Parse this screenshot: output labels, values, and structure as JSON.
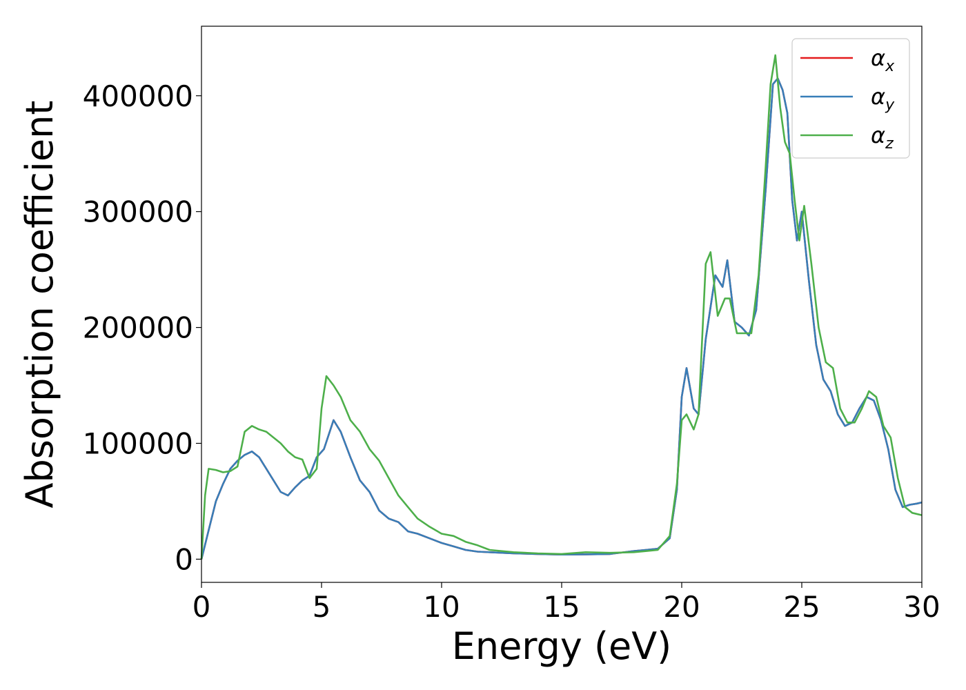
{
  "chart_data": {
    "type": "line",
    "xlabel": "Energy (eV)",
    "ylabel": "Absorption coefficient",
    "xlim": [
      0,
      30
    ],
    "ylim": [
      -20000,
      460000
    ],
    "xticks": [
      "0",
      "5",
      "10",
      "15",
      "20",
      "25",
      "30"
    ],
    "yticks": [
      "0",
      "100000",
      "200000",
      "300000",
      "400000"
    ],
    "grid": false,
    "legend_position": "top-right",
    "series": [
      {
        "name": "α",
        "subscript": "x",
        "color": "#e41a1c",
        "x": [
          0,
          0.3,
          0.6,
          0.9,
          1.2,
          1.5,
          1.8,
          2.1,
          2.4,
          2.7,
          3.0,
          3.3,
          3.6,
          3.9,
          4.2,
          4.5,
          4.8,
          5.1,
          5.5,
          5.8,
          6.2,
          6.6,
          7.0,
          7.4,
          7.8,
          8.2,
          8.6,
          9.0,
          9.5,
          10.0,
          10.5,
          11.0,
          11.5,
          12.0,
          13.0,
          14.0,
          15.0,
          16.0,
          17.0,
          18.0,
          18.5,
          19.0,
          19.5,
          19.8,
          20.0,
          20.2,
          20.5,
          20.7,
          21.0,
          21.4,
          21.7,
          21.9,
          22.2,
          22.5,
          22.8,
          23.1,
          23.5,
          23.8,
          24.0,
          24.2,
          24.4,
          24.6,
          24.8,
          25.0,
          25.3,
          25.6,
          25.9,
          26.2,
          26.5,
          26.8,
          27.1,
          27.4,
          27.7,
          28.0,
          28.3,
          28.6,
          28.9,
          29.2,
          29.5,
          29.8,
          30.0
        ],
        "y": [
          0,
          25000,
          50000,
          65000,
          78000,
          85000,
          90000,
          93000,
          88000,
          78000,
          68000,
          58000,
          55000,
          62000,
          68000,
          72000,
          88000,
          95000,
          120000,
          110000,
          88000,
          68000,
          58000,
          42000,
          35000,
          32000,
          24000,
          22000,
          18000,
          14000,
          11000,
          8000,
          6500,
          6000,
          5000,
          4500,
          4000,
          4200,
          4500,
          7000,
          8000,
          9000,
          18000,
          60000,
          140000,
          165000,
          130000,
          125000,
          190000,
          245000,
          235000,
          258000,
          205000,
          200000,
          193000,
          215000,
          320000,
          410000,
          415000,
          405000,
          385000,
          310000,
          275000,
          300000,
          240000,
          185000,
          155000,
          145000,
          125000,
          115000,
          118000,
          130000,
          140000,
          137000,
          120000,
          95000,
          60000,
          45000,
          47000,
          48000,
          49000
        ]
      },
      {
        "name": "α",
        "subscript": "y",
        "color": "#377eb8",
        "x": [
          0,
          0.3,
          0.6,
          0.9,
          1.2,
          1.5,
          1.8,
          2.1,
          2.4,
          2.7,
          3.0,
          3.3,
          3.6,
          3.9,
          4.2,
          4.5,
          4.8,
          5.1,
          5.5,
          5.8,
          6.2,
          6.6,
          7.0,
          7.4,
          7.8,
          8.2,
          8.6,
          9.0,
          9.5,
          10.0,
          10.5,
          11.0,
          11.5,
          12.0,
          13.0,
          14.0,
          15.0,
          16.0,
          17.0,
          18.0,
          18.5,
          19.0,
          19.5,
          19.8,
          20.0,
          20.2,
          20.5,
          20.7,
          21.0,
          21.4,
          21.7,
          21.9,
          22.2,
          22.5,
          22.8,
          23.1,
          23.5,
          23.8,
          24.0,
          24.2,
          24.4,
          24.6,
          24.8,
          25.0,
          25.3,
          25.6,
          25.9,
          26.2,
          26.5,
          26.8,
          27.1,
          27.4,
          27.7,
          28.0,
          28.3,
          28.6,
          28.9,
          29.2,
          29.5,
          29.8,
          30.0
        ],
        "y": [
          0,
          25000,
          50000,
          65000,
          78000,
          85000,
          90000,
          93000,
          88000,
          78000,
          68000,
          58000,
          55000,
          62000,
          68000,
          72000,
          88000,
          95000,
          120000,
          110000,
          88000,
          68000,
          58000,
          42000,
          35000,
          32000,
          24000,
          22000,
          18000,
          14000,
          11000,
          8000,
          6500,
          6000,
          5000,
          4500,
          4000,
          4200,
          4500,
          7000,
          8000,
          9000,
          18000,
          60000,
          140000,
          165000,
          130000,
          125000,
          190000,
          245000,
          235000,
          258000,
          205000,
          200000,
          193000,
          215000,
          320000,
          410000,
          415000,
          405000,
          385000,
          310000,
          275000,
          300000,
          240000,
          185000,
          155000,
          145000,
          125000,
          115000,
          118000,
          130000,
          140000,
          137000,
          120000,
          95000,
          60000,
          45000,
          47000,
          48000,
          49000
        ]
      },
      {
        "name": "α",
        "subscript": "z",
        "color": "#4daf4a",
        "x": [
          0,
          0.15,
          0.3,
          0.6,
          0.9,
          1.2,
          1.5,
          1.8,
          2.1,
          2.4,
          2.7,
          3.0,
          3.3,
          3.6,
          3.9,
          4.2,
          4.5,
          4.8,
          5.0,
          5.2,
          5.5,
          5.8,
          6.2,
          6.6,
          7.0,
          7.4,
          7.8,
          8.2,
          8.6,
          9.0,
          9.5,
          10.0,
          10.5,
          11.0,
          11.5,
          12.0,
          13.0,
          14.0,
          15.0,
          16.0,
          17.0,
          18.0,
          18.5,
          19.0,
          19.5,
          19.8,
          20.0,
          20.2,
          20.5,
          20.7,
          21.0,
          21.2,
          21.5,
          21.8,
          22.0,
          22.3,
          22.6,
          22.9,
          23.2,
          23.5,
          23.7,
          23.9,
          24.1,
          24.3,
          24.5,
          24.7,
          24.9,
          25.1,
          25.4,
          25.7,
          26.0,
          26.3,
          26.6,
          26.9,
          27.2,
          27.5,
          27.8,
          28.1,
          28.4,
          28.7,
          29.0,
          29.3,
          29.6,
          30.0
        ],
        "y": [
          0,
          55000,
          78000,
          77000,
          75000,
          76000,
          80000,
          110000,
          115000,
          112000,
          110000,
          105000,
          100000,
          93000,
          88000,
          86000,
          70000,
          78000,
          130000,
          158000,
          150000,
          140000,
          120000,
          110000,
          95000,
          85000,
          70000,
          55000,
          45000,
          35000,
          28000,
          22000,
          20000,
          15000,
          12000,
          8000,
          6000,
          5000,
          4500,
          6000,
          5500,
          6000,
          7000,
          8000,
          20000,
          65000,
          120000,
          125000,
          112000,
          125000,
          255000,
          265000,
          210000,
          225000,
          225000,
          195000,
          195000,
          195000,
          245000,
          340000,
          410000,
          435000,
          390000,
          360000,
          350000,
          310000,
          275000,
          305000,
          255000,
          200000,
          170000,
          165000,
          130000,
          118000,
          118000,
          130000,
          145000,
          140000,
          115000,
          105000,
          70000,
          45000,
          40000,
          38000
        ]
      }
    ]
  }
}
